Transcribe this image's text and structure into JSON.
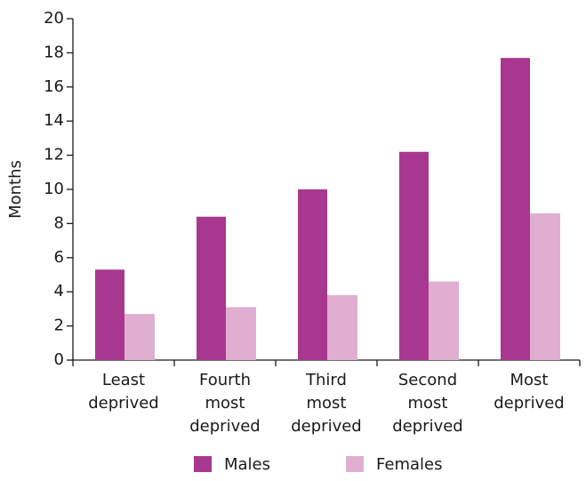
{
  "chart_data": {
    "type": "bar",
    "y_label": "Months",
    "categories": [
      "Least deprived",
      "Fourth most deprived",
      "Third most deprived",
      "Second most deprived",
      "Most deprived"
    ],
    "series": [
      {
        "name": "Males",
        "color": "#a8388f",
        "values": [
          5.3,
          8.4,
          10.0,
          12.2,
          17.7
        ]
      },
      {
        "name": "Females",
        "color": "#dfaed0",
        "values": [
          2.7,
          3.1,
          3.8,
          4.6,
          8.6
        ]
      }
    ],
    "ylim": [
      0,
      20
    ],
    "yticks": [
      0,
      2,
      4,
      6,
      8,
      10,
      12,
      14,
      16,
      18,
      20
    ],
    "legend": "bottom"
  }
}
